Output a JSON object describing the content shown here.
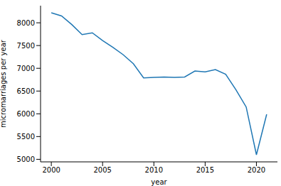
{
  "chart_data": {
    "type": "line",
    "x_label": "year",
    "y_label": "micromarriages per year",
    "x": [
      2000,
      2001,
      2002,
      2003,
      2004,
      2005,
      2006,
      2007,
      2008,
      2009,
      2010,
      2011,
      2012,
      2013,
      2014,
      2015,
      2016,
      2017,
      2018,
      2019,
      2020,
      2021
    ],
    "values": [
      8220,
      8150,
      7960,
      7740,
      7780,
      7610,
      7460,
      7300,
      7100,
      6790,
      6800,
      6810,
      6800,
      6810,
      6940,
      6920,
      6970,
      6870,
      6530,
      6150,
      5100,
      5990
    ],
    "color": "#1f77b4",
    "xlim": [
      1998.95,
      2022.05
    ],
    "ylim": [
      4944,
      8376
    ],
    "xticks": [
      2000,
      2005,
      2010,
      2015,
      2020
    ],
    "yticks": [
      5000,
      5500,
      6000,
      6500,
      7000,
      7500,
      8000
    ],
    "grid": false
  }
}
